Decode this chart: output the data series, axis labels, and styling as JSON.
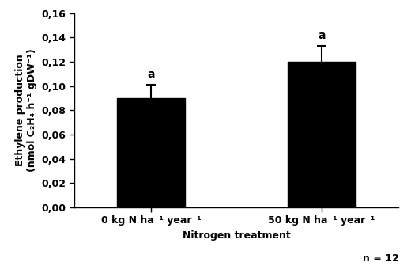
{
  "categories": [
    "0 kg N ha⁻¹ year⁻¹",
    "50 kg N ha⁻¹ year⁻¹"
  ],
  "values": [
    0.09,
    0.12
  ],
  "errors": [
    0.011,
    0.013
  ],
  "bar_color": "#000000",
  "bar_width": 0.4,
  "bar_positions": [
    0.75,
    1.75
  ],
  "ylabel_line1": "Ethylene production",
  "ylabel_line2": "(nmol C₂H₄ h⁻¹ gDW⁻¹)",
  "xlabel": "Nitrogen treatment",
  "ylim": [
    0.0,
    0.16
  ],
  "yticks": [
    0.0,
    0.02,
    0.04,
    0.06,
    0.08,
    0.1,
    0.12,
    0.14,
    0.16
  ],
  "ytick_labels": [
    "0,00",
    "0,02",
    "0,04",
    "0,06",
    "0,08",
    "0,10",
    "0,12",
    "0,14",
    "0,16"
  ],
  "letter_labels": [
    "a",
    "a"
  ],
  "n_label": "n = 12",
  "bar_edge_color": "#000000",
  "error_color": "#000000",
  "capsize": 4,
  "label_fontsize": 9,
  "tick_fontsize": 9,
  "letter_fontsize": 10
}
